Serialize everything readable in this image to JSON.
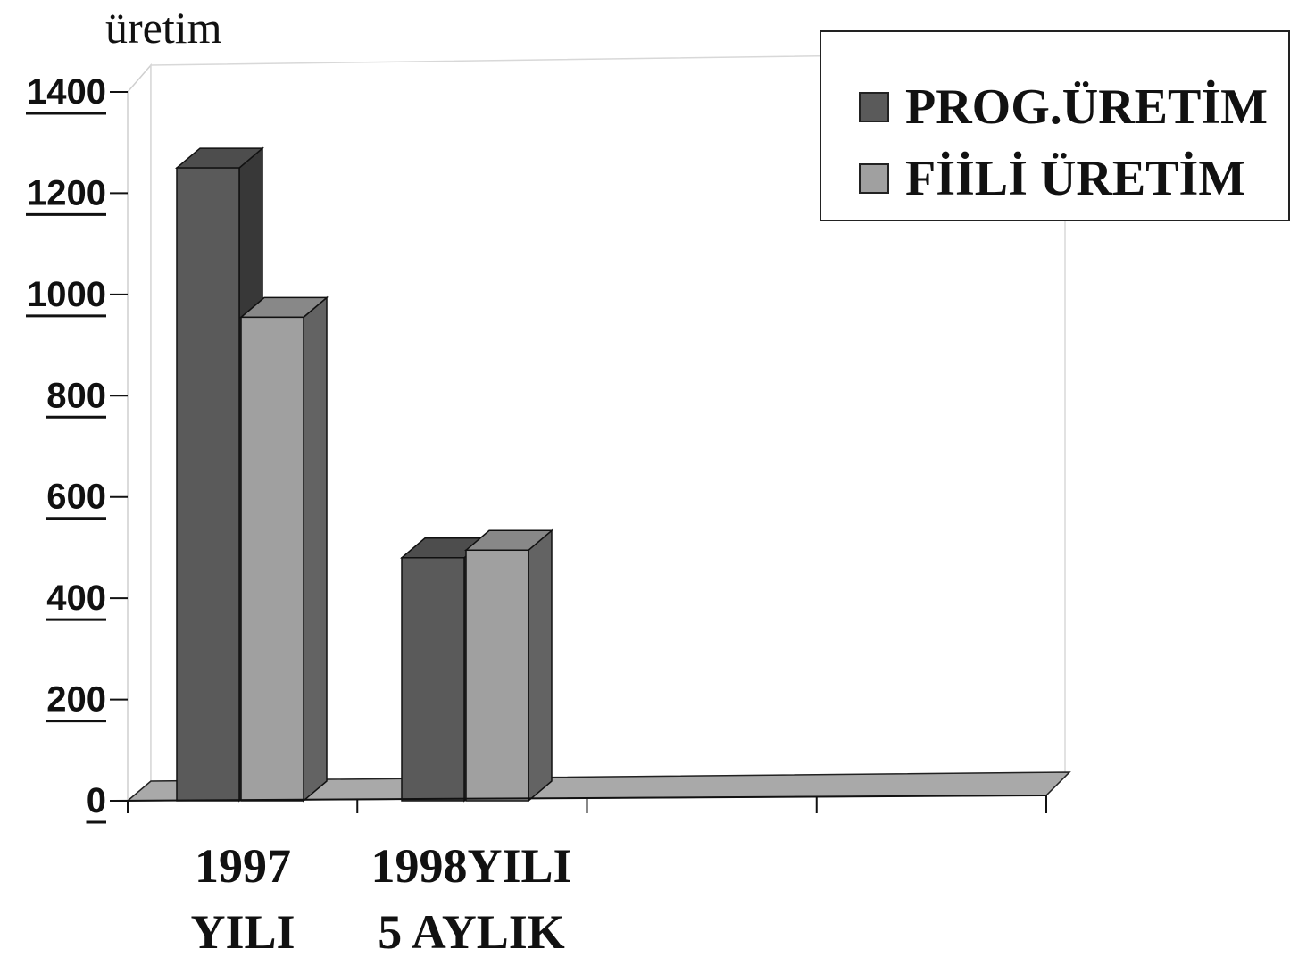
{
  "chart_data": {
    "type": "bar",
    "ylabel": "üretim",
    "categories": [
      {
        "line1": "1997",
        "line2": "YILI"
      },
      {
        "line1": "1998YILI",
        "line2": "5 AYLIK"
      }
    ],
    "series": [
      {
        "name": "PROG.ÜRETİM",
        "color": "#5a5a5a",
        "values": [
          1250,
          480
        ]
      },
      {
        "name": "FİİLİ ÜRETİM",
        "color": "#a0a0a0",
        "values": [
          955,
          495
        ]
      }
    ],
    "ylim": [
      0,
      1400
    ],
    "yticks": [
      "0",
      "200",
      "400",
      "600",
      "800",
      "1000",
      "1200",
      "1400"
    ],
    "legend_position": "top-right",
    "grid": false
  }
}
